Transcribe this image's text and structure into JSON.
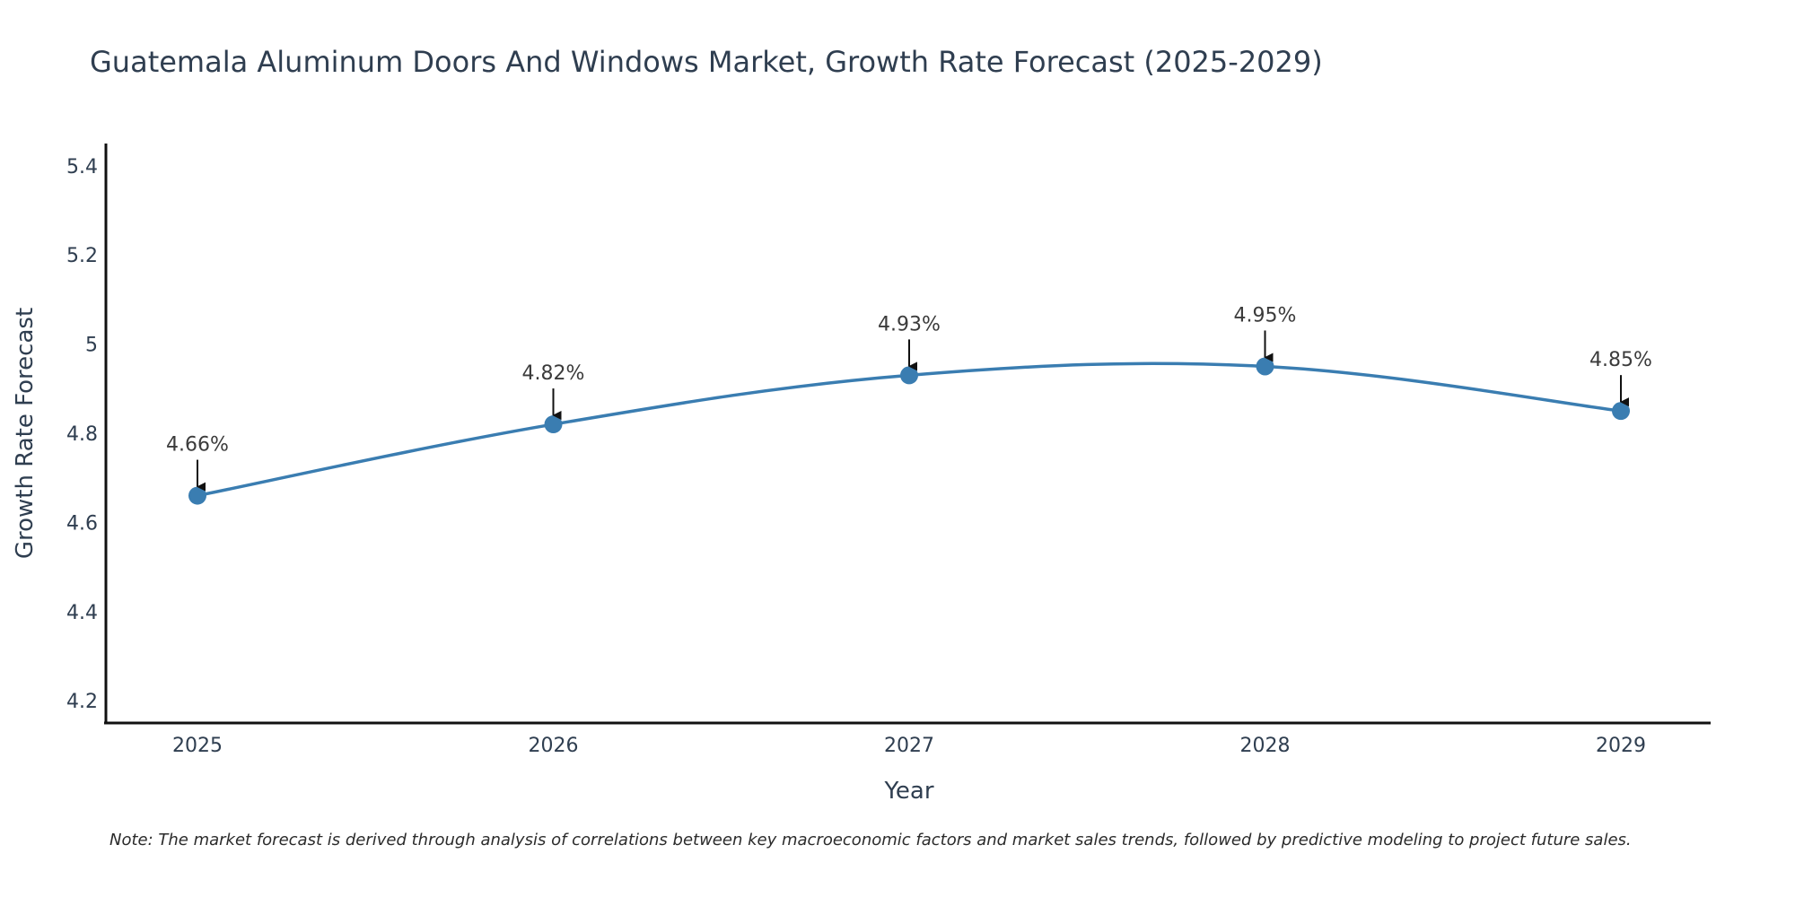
{
  "chart_data": {
    "type": "line",
    "title": "Guatemala Aluminum Doors And Windows Market, Growth Rate Forecast (2025-2029)",
    "xlabel": "Year",
    "ylabel": "Growth Rate Forecast",
    "categories": [
      "2025",
      "2026",
      "2027",
      "2028",
      "2029"
    ],
    "series": [
      {
        "name": "Growth Rate Forecast",
        "values": [
          4.66,
          4.82,
          4.93,
          4.95,
          4.85
        ],
        "labels": [
          "4.66%",
          "4.82%",
          "4.93%",
          "4.95%",
          "4.85%"
        ]
      }
    ],
    "ylim": [
      4.15,
      5.45
    ],
    "yticks": [
      4.2,
      4.4,
      4.6,
      4.8,
      5,
      5.2,
      5.4
    ],
    "ytick_labels": [
      "4.2",
      "4.4",
      "4.6",
      "4.8",
      "5",
      "5.2",
      "5.4"
    ],
    "grid": false,
    "line_color": "#3a7db1",
    "note": "Note: The market forecast is derived through analysis of correlations between key macroeconomic factors and market sales trends, followed by predictive modeling to project future sales."
  }
}
